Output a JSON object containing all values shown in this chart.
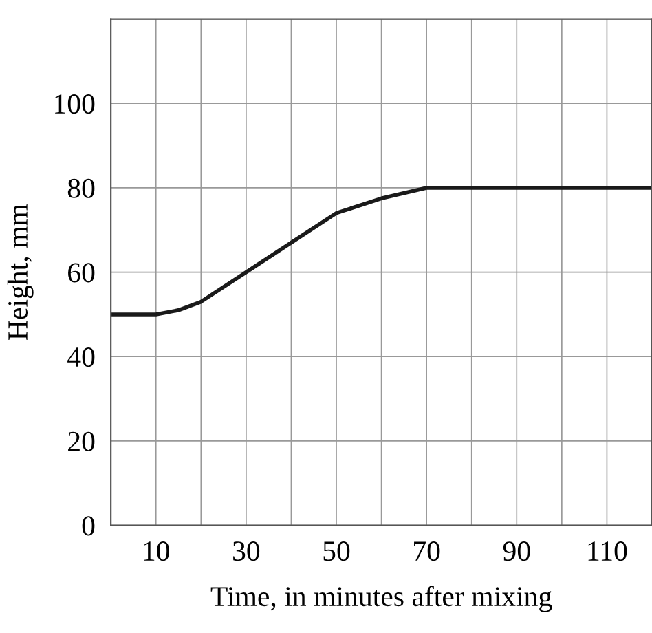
{
  "chart_data": {
    "type": "line",
    "xlabel": "Time, in minutes after mixing",
    "ylabel": "Height, mm",
    "x": [
      0,
      10,
      15,
      20,
      30,
      40,
      50,
      60,
      70,
      120
    ],
    "series": [
      {
        "color": "#1a1a1a",
        "values": [
          50,
          50,
          51,
          53,
          60,
          67,
          74,
          77.5,
          80,
          80
        ]
      }
    ],
    "xlim": [
      0,
      120
    ],
    "ylim": [
      0,
      120
    ],
    "xticks": [
      {
        "value": 0,
        "label": null
      },
      10,
      {
        "value": 20,
        "label": null
      },
      30,
      {
        "value": 40,
        "label": null
      },
      50,
      {
        "value": 60,
        "label": null
      },
      70,
      {
        "value": 80,
        "label": null
      },
      90,
      {
        "value": 100,
        "label": null
      },
      110,
      {
        "value": 120,
        "label": null
      }
    ],
    "yticks": [
      0,
      20,
      40,
      60,
      80,
      100,
      {
        "value": 120,
        "label": null
      }
    ],
    "grid": true,
    "legend": false,
    "marker": "none",
    "line_style": "solid"
  }
}
